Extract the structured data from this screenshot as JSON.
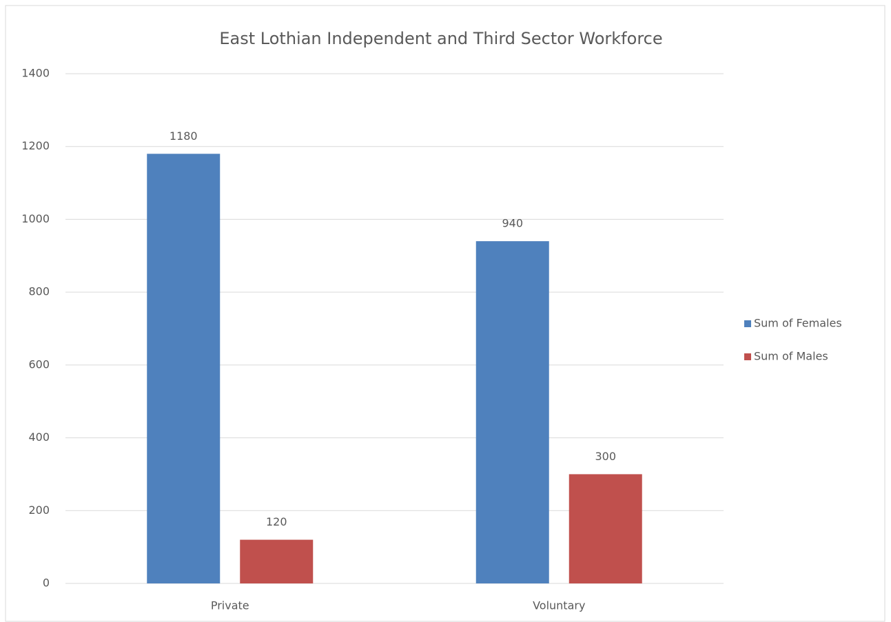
{
  "chart_data": {
    "type": "bar",
    "title": "East Lothian Independent and Third Sector Workforce",
    "categories": [
      "Private",
      "Voluntary"
    ],
    "series": [
      {
        "name": "Sum of Females",
        "color": "#4f81bd",
        "values": [
          1180,
          940
        ]
      },
      {
        "name": "Sum of Males",
        "color": "#c0504d",
        "values": [
          120,
          300
        ]
      }
    ],
    "ylim": [
      0,
      1400
    ],
    "yticks": [
      0,
      200,
      400,
      600,
      800,
      1000,
      1200,
      1400
    ],
    "grid": true,
    "legend": "right"
  }
}
